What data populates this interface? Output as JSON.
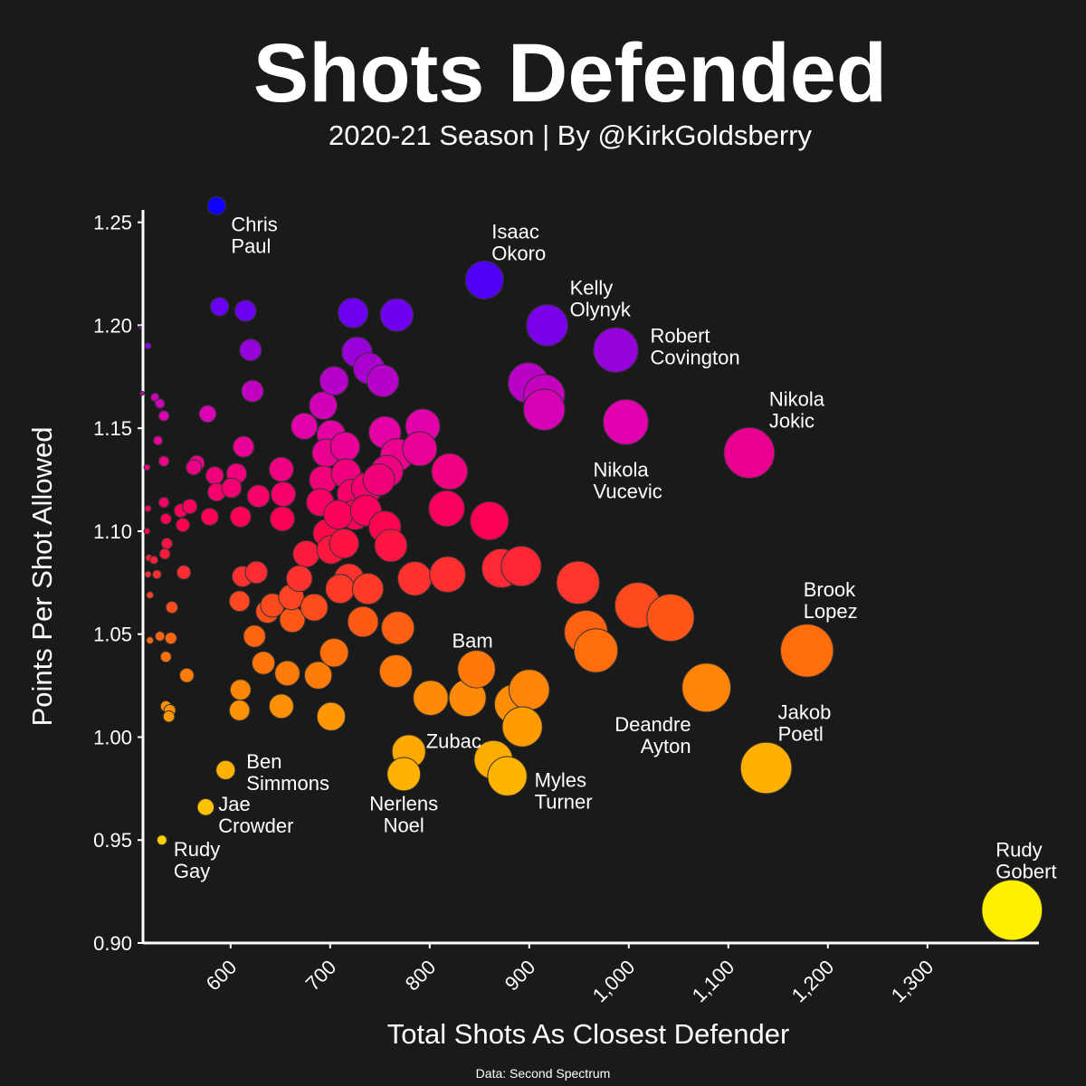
{
  "chart_data": {
    "type": "scatter",
    "title": "Shots Defended",
    "subtitle": "2020-21 Season | By @KirkGoldsberry",
    "x_label": "Total Shots As Closest Defender",
    "y_label": "Points Per Shot Allowed",
    "source": "Data: Second Spectrum",
    "xlim": [
      512,
      1412
    ],
    "ylim": [
      0.9,
      1.256
    ],
    "xticks": [
      600,
      700,
      800,
      900,
      {
        "value": 1000,
        "label": "1,000"
      },
      {
        "value": 1100,
        "label": "1,100"
      },
      {
        "value": 1200,
        "label": "1,200"
      },
      {
        "value": 1300,
        "label": "1,300"
      }
    ],
    "yticks": [
      {
        "value": 0.9,
        "label": "0.90"
      },
      0.95,
      {
        "value": 1.0,
        "label": "1.00"
      },
      1.05,
      {
        "value": 1.1,
        "label": "1.10"
      },
      1.15,
      {
        "value": 1.2,
        "label": "1.20"
      },
      1.25
    ],
    "grid": false,
    "colormap": [
      "#ffff00",
      "#ffd000",
      "#ffa000",
      "#ff6010",
      "#ff0050",
      "#e000b0",
      "#7000f0",
      "#1000ff"
    ],
    "series": [
      {
        "x": [
          586,
          855,
          918,
          987,
          1121,
          997,
          1179,
          847,
          1078,
          1138,
          779,
          774,
          878,
          595,
          575,
          531,
          1385
        ],
        "y": [
          1.258,
          1.222,
          1.2,
          1.188,
          1.138,
          1.153,
          1.042,
          1.033,
          1.024,
          0.985,
          0.993,
          0.982,
          0.981,
          0.984,
          0.966,
          0.95,
          0.916
        ],
        "labels": [
          [
            "Chris",
            "Paul"
          ],
          [
            "Isaac",
            "Okoro"
          ],
          [
            "Kelly",
            "Olynyk"
          ],
          [
            "Robert",
            "Covington"
          ],
          [
            "Nikola",
            "Jokic"
          ],
          [
            "Nikola",
            "Vucevic"
          ],
          [
            "Brook",
            "Lopez"
          ],
          [
            "Bam"
          ],
          [
            "Deandre",
            "Ayton"
          ],
          [
            "Jakob",
            "Poetl"
          ],
          [
            "Zubac"
          ],
          [
            "Nerlens",
            "Noel"
          ],
          [
            "Myles",
            "Turner"
          ],
          [
            "Ben",
            "Simmons"
          ],
          [
            "Jae",
            "Crowder"
          ],
          [
            "Rudy",
            "Gay"
          ],
          [
            "Rudy",
            "Gobert"
          ]
        ]
      },
      {
        "x": [
          589,
          615,
          620,
          622,
          509,
          517,
          511,
          524,
          529,
          533,
          527,
          533,
          516,
          577,
          566,
          563,
          584,
          606,
          613,
          586,
          601,
          579,
          610,
          651,
          653,
          652,
          628,
          517,
          516,
          533,
          535,
          550,
          559,
          552,
          536,
          518,
          523,
          534,
          517,
          526,
          553,
          519,
          541,
          519,
          529,
          540,
          535,
          556,
          535,
          539,
          538,
          610,
          609,
          651,
          633,
          624,
          609,
          612,
          626,
          637,
          642,
          662,
          661,
          676,
          669,
          684,
          688,
          657,
          701,
          704,
          674,
          693,
          704,
          701,
          696,
          693,
          690,
          697,
          701,
          715,
          716,
          722,
          725,
          708,
          714,
          737,
          736,
          723,
          767,
          727,
          739,
          753,
          755,
          767,
          757,
          749,
          793,
          790,
          820,
          817,
          755,
          761,
          719,
          710,
          738,
          733,
          768,
          785,
          818,
          766,
          801,
          838,
          885,
          900,
          893,
          864,
          860,
          872,
          892,
          949,
          1009,
          1042,
          957,
          967,
          899,
          915,
          915
        ],
        "y": [
          1.209,
          1.207,
          1.188,
          1.168,
          1.199,
          1.19,
          1.167,
          1.165,
          1.162,
          1.156,
          1.144,
          1.134,
          1.131,
          1.157,
          1.133,
          1.131,
          1.127,
          1.128,
          1.141,
          1.119,
          1.121,
          1.107,
          1.107,
          1.13,
          1.118,
          1.106,
          1.117,
          1.111,
          1.1,
          1.114,
          1.106,
          1.11,
          1.112,
          1.103,
          1.094,
          1.087,
          1.086,
          1.089,
          1.079,
          1.079,
          1.08,
          1.069,
          1.063,
          1.047,
          1.049,
          1.048,
          1.039,
          1.03,
          1.015,
          1.013,
          1.01,
          1.023,
          1.013,
          1.015,
          1.036,
          1.049,
          1.066,
          1.078,
          1.08,
          1.061,
          1.064,
          1.057,
          1.068,
          1.089,
          1.077,
          1.063,
          1.03,
          1.031,
          1.01,
          1.041,
          1.151,
          1.161,
          1.173,
          1.147,
          1.138,
          1.125,
          1.114,
          1.099,
          1.091,
          1.141,
          1.128,
          1.118,
          1.108,
          1.108,
          1.094,
          1.121,
          1.11,
          1.206,
          1.205,
          1.187,
          1.179,
          1.173,
          1.148,
          1.137,
          1.129,
          1.125,
          1.151,
          1.14,
          1.129,
          1.111,
          1.102,
          1.093,
          1.077,
          1.072,
          1.072,
          1.056,
          1.053,
          1.077,
          1.079,
          1.032,
          1.019,
          1.019,
          1.016,
          1.023,
          1.005,
          0.989,
          1.105,
          1.082,
          1.083,
          1.075,
          1.064,
          1.058,
          1.051,
          1.042,
          1.172,
          1.166,
          1.159
        ]
      }
    ]
  }
}
